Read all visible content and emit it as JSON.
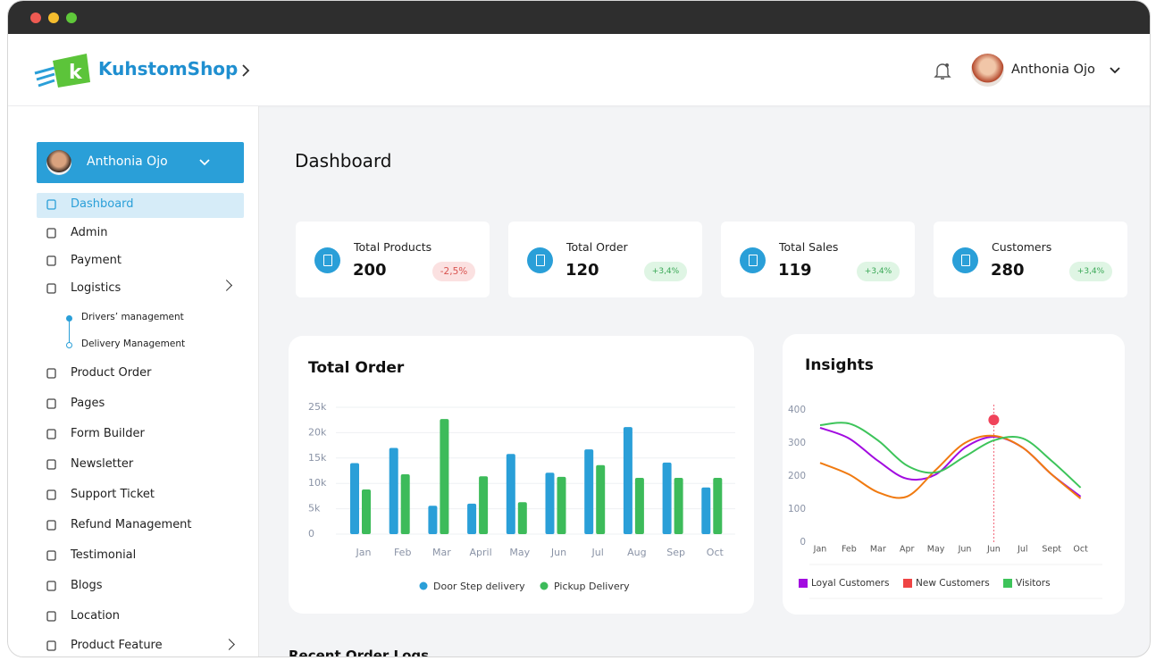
{
  "header": {
    "brand": "KuhstomShop",
    "user_name": "Anthonia Ojo"
  },
  "sidebar": {
    "profile_name": "Anthonia Ojo",
    "menu": [
      {
        "label": "Dashboard"
      },
      {
        "label": "Admin"
      },
      {
        "label": "Payment"
      },
      {
        "label": "Logistics",
        "children": [
          "Drivers’ management",
          "Delivery Management"
        ]
      },
      {
        "label": "Product Order"
      },
      {
        "label": "Pages"
      },
      {
        "label": "Form Builder"
      },
      {
        "label": "Newsletter"
      },
      {
        "label": "Support Ticket"
      },
      {
        "label": "Refund Management"
      },
      {
        "label": "Testimonial"
      },
      {
        "label": "Blogs"
      },
      {
        "label": "Location"
      },
      {
        "label": "Product Feature"
      }
    ]
  },
  "page_title": "Dashboard",
  "stats": [
    {
      "label": "Total Products",
      "value": 200,
      "change": "-2,5%"
    },
    {
      "label": "Total Order",
      "value": 120,
      "change": "+3,4%"
    },
    {
      "label": "Total Sales",
      "value": 119,
      "change": "+3,4%"
    },
    {
      "label": "Customers",
      "value": 280,
      "change": "+3,4%"
    }
  ],
  "chart_data": [
    {
      "type": "bar",
      "title": "Total Order",
      "categories": [
        "Jan",
        "Feb",
        "Mar",
        "April",
        "May",
        "Jun",
        "Jul",
        "Aug",
        "Sep",
        "Oct"
      ],
      "series": [
        {
          "name": "Door Step delivery",
          "color": "#2a9fd8",
          "values": [
            14000,
            17000,
            5600,
            6000,
            15800,
            12100,
            16700,
            21100,
            14100,
            9200
          ]
        },
        {
          "name": "Pickup Delivery",
          "color": "#3dbb5a",
          "values": [
            8800,
            11800,
            22700,
            11400,
            6300,
            11300,
            13600,
            11100,
            11100,
            11100
          ]
        }
      ],
      "ylim": [
        0,
        25000
      ],
      "yticks": [
        0,
        {
          "value": 5000,
          "label": "5k"
        },
        {
          "value": 10000,
          "label": "10k"
        },
        {
          "value": 15000,
          "label": "15k"
        },
        {
          "value": 20000,
          "label": "20k"
        },
        {
          "value": 25000,
          "label": "25k"
        }
      ],
      "grid": true
    },
    {
      "type": "line",
      "title": "Insights",
      "categories": [
        "Jan",
        "Feb",
        "Mar",
        "Apr",
        "May",
        "Jun",
        "Jun",
        "Jul",
        "Sept",
        "Oct"
      ],
      "series": [
        {
          "name": "Loyal Customers",
          "color": "#a20be0",
          "legend_color": "#a20be0",
          "values": [
            346,
            314,
            246,
            192,
            205,
            286,
            319,
            286,
            205,
            138
          ]
        },
        {
          "name": "New Customers",
          "color": "#f07a10",
          "legend_color": "#ef4444",
          "values": [
            240,
            205,
            151,
            138,
            219,
            300,
            322,
            286,
            205,
            132
          ]
        },
        {
          "name": "Visitors",
          "color": "#3dc45a",
          "legend_color": "#3dc45a",
          "values": [
            354,
            359,
            308,
            232,
            211,
            259,
            308,
            314,
            246,
            165
          ]
        }
      ],
      "highlight": {
        "value": 370,
        "color": "#f0435a"
      },
      "ylim": [
        0,
        400
      ],
      "yticks": [
        0,
        100,
        200,
        300,
        400
      ],
      "grid": false
    }
  ],
  "section_title": "Recent Order Logs"
}
